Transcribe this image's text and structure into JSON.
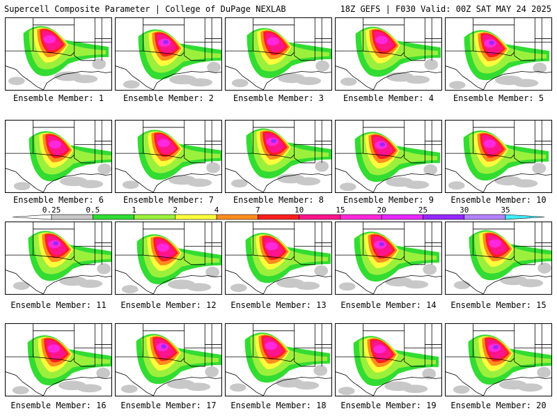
{
  "header": {
    "title": "Supercell Composite Parameter | College of DuPage NEXLAB",
    "valid": "18Z GEFS | F030 Valid: 00Z SAT MAY 24 2025"
  },
  "members": [
    "Ensemble Member: 1",
    "Ensemble Member: 2",
    "Ensemble Member: 3",
    "Ensemble Member: 4",
    "Ensemble Member: 5",
    "Ensemble Member: 6",
    "Ensemble Member: 7",
    "Ensemble Member: 8",
    "Ensemble Member: 9",
    "Ensemble Member: 10",
    "Ensemble Member: 11",
    "Ensemble Member: 12",
    "Ensemble Member: 13",
    "Ensemble Member: 14",
    "Ensemble Member: 15",
    "Ensemble Member: 16",
    "Ensemble Member: 17",
    "Ensemble Member: 18",
    "Ensemble Member: 19",
    "Ensemble Member: 20"
  ],
  "colorbar": {
    "ticks": [
      "0.25",
      "0.5",
      "1",
      "2",
      "4",
      "7",
      "10",
      "15",
      "20",
      "25",
      "30",
      "35"
    ],
    "colors": [
      "#ffffff",
      "#c8c8c8",
      "#32dc32",
      "#9bf03c",
      "#ffff3c",
      "#ff8c1e",
      "#ff1e1e",
      "#ff148c",
      "#ff28dc",
      "#e628ff",
      "#9628ff",
      "#b482ff",
      "#3cf0ff"
    ]
  },
  "map_colors": {
    "gray": "#c8c8c8",
    "green": "#32dc32",
    "lightgreen": "#9bf03c",
    "yellow": "#ffff3c",
    "orange": "#ff8c1e",
    "red": "#ff1e1e",
    "pink": "#ff148c",
    "magenta": "#ff28dc",
    "purple": "#9628ff"
  }
}
